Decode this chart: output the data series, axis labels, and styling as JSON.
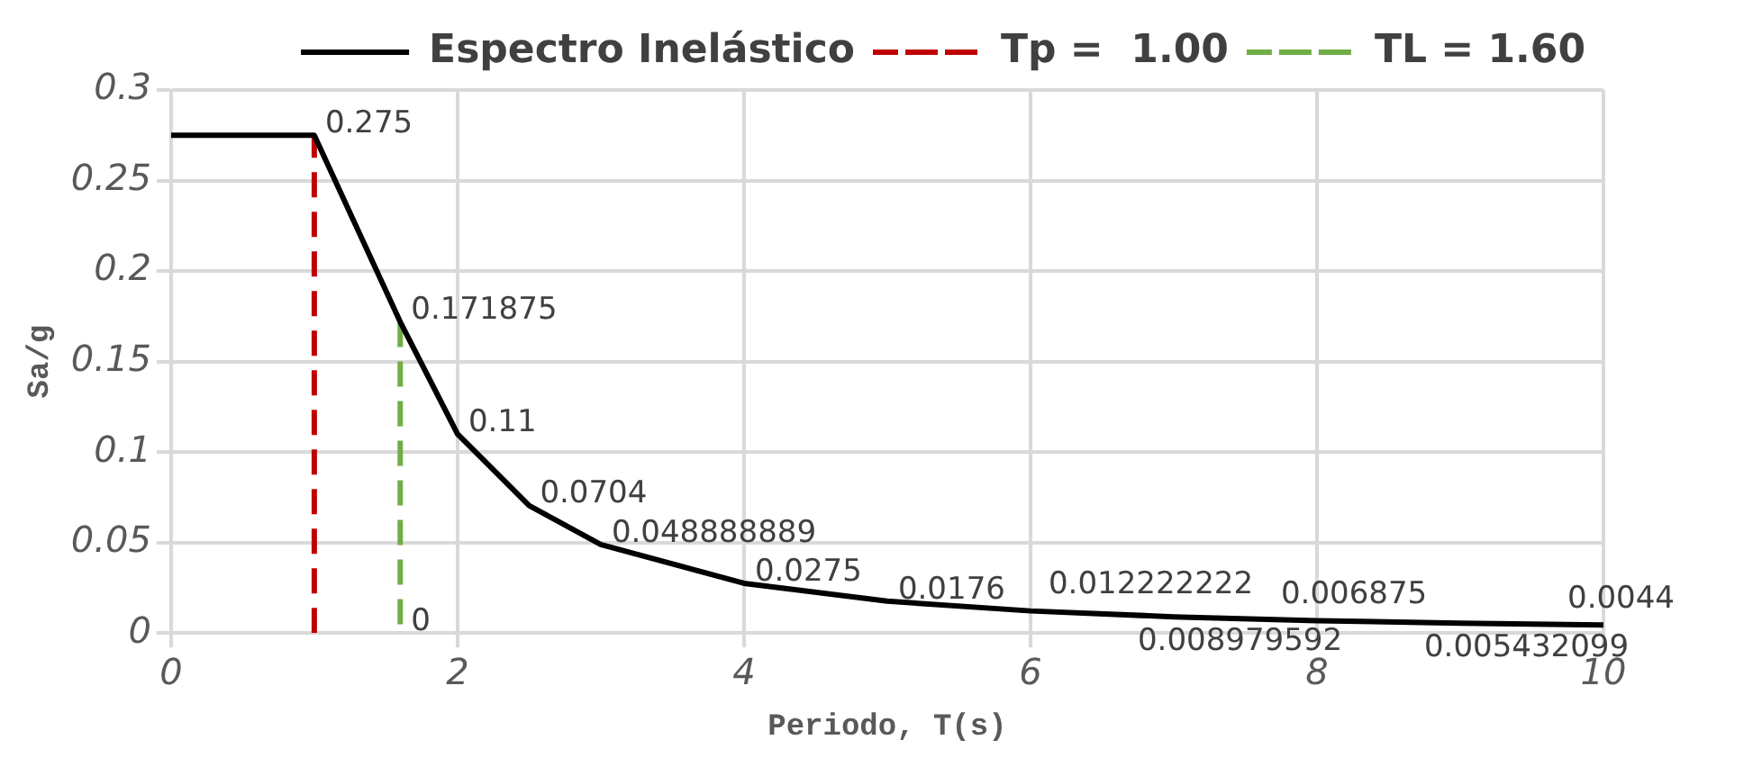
{
  "chart_data": {
    "type": "line",
    "xlabel": "Periodo, T(s)",
    "ylabel": "Sa/g",
    "xlim": [
      0,
      10
    ],
    "xticks": [
      0,
      2,
      4,
      6,
      8,
      10
    ],
    "ylim": [
      0,
      0.3
    ],
    "yticks": [
      0,
      0.05,
      0.1,
      0.15,
      0.2,
      0.25,
      0.3
    ],
    "grid": true,
    "legend": "top",
    "marker": "none",
    "series": [
      {
        "name": "Espectro Inelástico",
        "color": "#000000",
        "line_style": "solid",
        "x": [
          0,
          1,
          1.6,
          2,
          2.5,
          3,
          4,
          5,
          6,
          7,
          8,
          9,
          10
        ],
        "values": [
          0.275,
          0.275,
          0.171875,
          0.11,
          0.0704,
          0.048888889,
          0.0275,
          0.0176,
          0.012222222,
          0.008979592,
          0.006875,
          0.005432099,
          0.0044
        ],
        "value_labels": [
          null,
          "0.275",
          "0.171875",
          "0.11",
          "0.0704",
          "0.048888889",
          "0.0275",
          "0.0176",
          "0.012222222",
          "0.008979592",
          "0.006875",
          "0.005432099",
          "0.0044"
        ]
      },
      {
        "name": "Tp =  1.00",
        "color": "#c00000",
        "line_style": "dashed",
        "x": [
          1,
          1
        ],
        "values": [
          0,
          0.275
        ],
        "value_labels": [
          null,
          null
        ]
      },
      {
        "name": "TL = 1.60",
        "color": "#70ad47",
        "line_style": "dashed",
        "x": [
          1.6,
          1.6
        ],
        "values": [
          0.171875,
          0
        ],
        "value_labels": [
          null,
          "0"
        ]
      }
    ]
  }
}
